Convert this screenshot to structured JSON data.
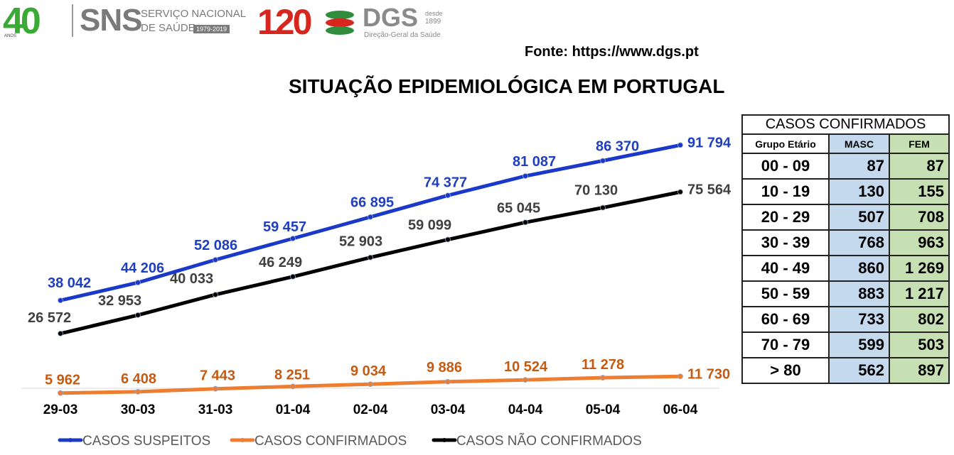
{
  "header": {
    "logo_40": "40",
    "logo_40_small": "ANOS",
    "sns_letters": "SNS",
    "sns_line1": "SERVIÇO NACIONAL",
    "sns_line2": "DE SAÚDE",
    "sns_years": "1979-2019",
    "dgs_anos": "120",
    "dgs_letters": "DGS",
    "dgs_desde": "desde",
    "dgs_year": "1899",
    "dgs_sub": "Direção-Geral da Saúde",
    "source": "Fonte: https://www.dgs.pt",
    "title": "SITUAÇÃO EPIDEMIOLÓGICA EM PORTUGAL"
  },
  "colors": {
    "suspeitos": "#1a39c9",
    "confirmados": "#ed7d31",
    "nao_confirmados": "#000000",
    "label_suspeitos": "#1f3fbf",
    "label_confirmados": "#c55a11",
    "label_nao_confirmados": "#404040",
    "masc_fill": "#c5d9ee",
    "fem_fill": "#c6e0b4"
  },
  "chart_data": {
    "type": "line",
    "title": "SITUAÇÃO EPIDEMIOLÓGICA EM PORTUGAL",
    "x": [
      "29-03",
      "30-03",
      "31-03",
      "01-04",
      "02-04",
      "03-04",
      "04-04",
      "05-04",
      "06-04"
    ],
    "series": [
      {
        "name": "CASOS SUSPEITOS",
        "values": [
          38042,
          44206,
          52086,
          59457,
          66895,
          74377,
          81087,
          86370,
          91794
        ],
        "labels": [
          "38 042",
          "44 206",
          "52 086",
          "59 457",
          "66 895",
          "74 377",
          "81 087",
          "86 370",
          "91 794"
        ]
      },
      {
        "name": "CASOS CONFIRMADOS",
        "values": [
          5962,
          6408,
          7443,
          8251,
          9034,
          9886,
          10524,
          11278,
          11730
        ],
        "labels": [
          "5 962",
          "6 408",
          "7 443",
          "8 251",
          "9 034",
          "9 886",
          "10 524",
          "11 278",
          "11 730"
        ]
      },
      {
        "name": "CASOS NÃO CONFIRMADOS",
        "values": [
          26572,
          32953,
          40033,
          46249,
          52903,
          59099,
          65045,
          70130,
          75564
        ],
        "labels": [
          "26 572",
          "32 953",
          "40 033",
          "46 249",
          "52 903",
          "59 099",
          "65 045",
          "70 130",
          "75 564"
        ]
      }
    ],
    "legend": "bottom",
    "grid": false
  },
  "table": {
    "caption": "CASOS CONFIRMADOS",
    "headers": [
      "Grupo Etário",
      "MASC",
      "FEM"
    ],
    "rows": [
      [
        "00 - 09",
        "87",
        "87"
      ],
      [
        "10 - 19",
        "130",
        "155"
      ],
      [
        "20 - 29",
        "507",
        "708"
      ],
      [
        "30 - 39",
        "768",
        "963"
      ],
      [
        "40 - 49",
        "860",
        "1 269"
      ],
      [
        "50 - 59",
        "883",
        "1 217"
      ],
      [
        "60 - 69",
        "733",
        "802"
      ],
      [
        "70 - 79",
        "599",
        "503"
      ],
      [
        "> 80",
        "562",
        "897"
      ]
    ]
  }
}
